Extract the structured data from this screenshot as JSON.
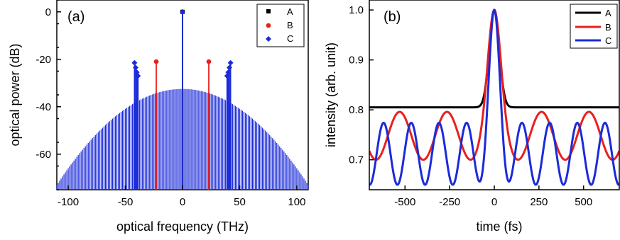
{
  "chart_data": [
    {
      "type": "stem",
      "panel_label": "(a)",
      "xlabel": "optical frequency (THz)",
      "ylabel": "optical power (dB)",
      "xlim": [
        -110,
        110
      ],
      "ylim": [
        -75,
        5
      ],
      "x_ticks": [
        -100,
        -50,
        0,
        50,
        100
      ],
      "y_ticks": [
        0,
        -20,
        -40,
        -60
      ],
      "legend_position": "top-right",
      "colors": {
        "A": "#000000",
        "B": "#e8201e",
        "C": "#1b2bd8"
      },
      "comb": {
        "series": "C",
        "description_values": "stems every ~1.25 THz from -110 to 110 THz forming a parabolic envelope",
        "envelope_peak_db": -32.5,
        "envelope_edge_db": -73,
        "spacing_thz": 1.25
      },
      "series": [
        {
          "name": "A",
          "marker": "square",
          "points": [
            [
              0,
              0
            ]
          ]
        },
        {
          "name": "B",
          "marker": "circle",
          "points": [
            [
              -23,
              -21
            ],
            [
              23,
              -21
            ]
          ]
        },
        {
          "name": "C",
          "marker": "diamond",
          "points": [
            [
              0,
              0
            ],
            [
              -42,
              -21.5
            ],
            [
              -41,
              -23.5
            ],
            [
              -40,
              -25.5
            ],
            [
              -39,
              -27
            ],
            [
              39,
              -27
            ],
            [
              40,
              -25.5
            ],
            [
              41,
              -23.5
            ],
            [
              42,
              -21.5
            ]
          ]
        }
      ]
    },
    {
      "type": "line",
      "panel_label": "(b)",
      "xlabel": "time (fs)",
      "ylabel": "intensity (arb. unit)",
      "xlim": [
        -700,
        700
      ],
      "ylim": [
        0.64,
        1.02
      ],
      "x_ticks": [
        -500,
        -250,
        0,
        250,
        500
      ],
      "y_ticks": [
        0.7,
        0.8,
        0.9,
        1.0
      ],
      "legend_position": "top-right",
      "series": [
        {
          "name": "A",
          "color": "#000000",
          "model": {
            "baseline": 0.805,
            "peak": 1.0,
            "width_fs": 28
          }
        },
        {
          "name": "B",
          "color": "#e8201e",
          "model": {
            "center": 0.748,
            "amplitude": 0.048,
            "period_fs": 265,
            "peak": 1.0,
            "width_fs": 35
          }
        },
        {
          "name": "C",
          "color": "#1b2bd8",
          "model": {
            "center": 0.712,
            "amplitude": 0.062,
            "period_fs": 155,
            "peak": 1.0,
            "width_fs": 30
          }
        }
      ]
    }
  ]
}
